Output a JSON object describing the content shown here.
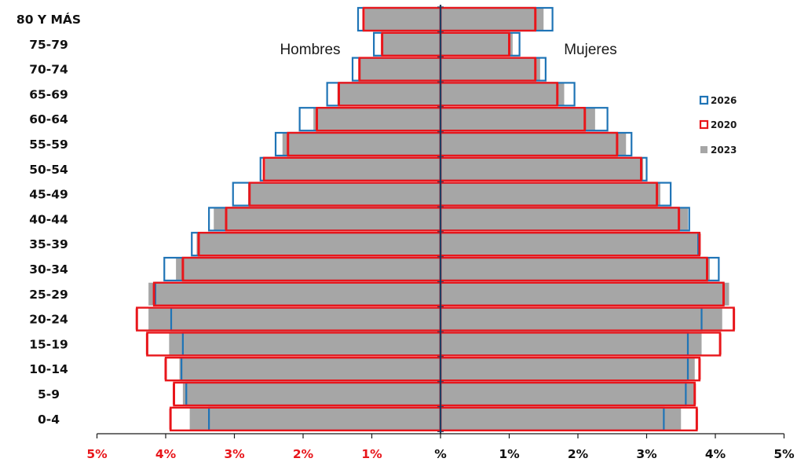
{
  "chart_data": {
    "type": "bar",
    "subtype": "population-pyramid",
    "title": "",
    "xlabel": "",
    "ylabel": "",
    "categories": [
      "80 Y MÁS",
      "75-79",
      "70-74",
      "65-69",
      "60-64",
      "55-59",
      "50-54",
      "45-49",
      "40-44",
      "35-39",
      "30-34",
      "25-29",
      "20-24",
      "15-19",
      "10-14",
      "5-9",
      "0-4"
    ],
    "xlim": [
      -5,
      5
    ],
    "x_ticks": [
      {
        "value": -5,
        "label": "5%",
        "color": "#e8161b"
      },
      {
        "value": -4,
        "label": "4%",
        "color": "#e8161b"
      },
      {
        "value": -3,
        "label": "3%",
        "color": "#e8161b"
      },
      {
        "value": -2,
        "label": "2%",
        "color": "#e8161b"
      },
      {
        "value": -1,
        "label": "1%",
        "color": "#e8161b"
      },
      {
        "value": 0,
        "label": "%",
        "color": "#111111"
      },
      {
        "value": 1,
        "label": "1%",
        "color": "#111111"
      },
      {
        "value": 2,
        "label": "2%",
        "color": "#111111"
      },
      {
        "value": 3,
        "label": "3%",
        "color": "#111111"
      },
      {
        "value": 4,
        "label": "4%",
        "color": "#111111"
      },
      {
        "value": 5,
        "label": "5%",
        "color": "#111111"
      }
    ],
    "side_labels": {
      "left": "Hombres",
      "right": "Mujeres"
    },
    "series": [
      {
        "name": "2023",
        "style": "gray-fill",
        "color": "#a6a6a6",
        "hombres": [
          1.1,
          0.85,
          1.18,
          1.5,
          1.85,
          2.3,
          2.55,
          2.8,
          3.3,
          3.55,
          3.85,
          4.25,
          4.25,
          3.95,
          3.8,
          3.75,
          3.65
        ],
        "mujeres": [
          1.5,
          1.05,
          1.45,
          1.8,
          2.25,
          2.7,
          2.95,
          3.2,
          3.6,
          3.75,
          3.92,
          4.2,
          4.1,
          3.8,
          3.7,
          3.7,
          3.5
        ]
      },
      {
        "name": "2026",
        "style": "blue-outline",
        "color": "#1f74b6",
        "hombres": [
          1.2,
          0.97,
          1.28,
          1.65,
          2.05,
          2.4,
          2.62,
          3.02,
          3.37,
          3.62,
          4.02,
          4.15,
          3.92,
          3.75,
          3.77,
          3.7,
          3.37
        ],
        "mujeres": [
          1.63,
          1.15,
          1.53,
          1.95,
          2.43,
          2.78,
          3.0,
          3.35,
          3.62,
          3.75,
          4.05,
          4.12,
          3.8,
          3.6,
          3.6,
          3.57,
          3.25
        ]
      },
      {
        "name": "2020",
        "style": "red-outline",
        "color": "#e8161b",
        "hombres": [
          1.12,
          0.85,
          1.18,
          1.48,
          1.8,
          2.22,
          2.57,
          2.78,
          3.12,
          3.52,
          3.75,
          4.17,
          4.42,
          4.27,
          4.0,
          3.88,
          3.93
        ],
        "mujeres": [
          1.38,
          1.0,
          1.38,
          1.7,
          2.1,
          2.57,
          2.92,
          3.15,
          3.47,
          3.77,
          3.88,
          4.12,
          4.27,
          4.07,
          3.77,
          3.7,
          3.73
        ]
      }
    ],
    "legend": {
      "placement": "right",
      "order": [
        "2026",
        "2020",
        "2023"
      ]
    },
    "grid": false
  }
}
